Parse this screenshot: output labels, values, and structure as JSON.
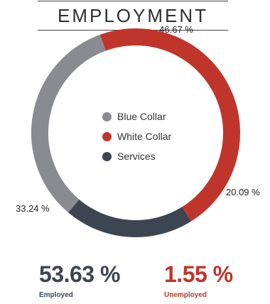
{
  "title": "EMPLOYMENT",
  "chart_data": {
    "type": "pie",
    "style": "donut",
    "categories": [
      "White Collar",
      "Services",
      "Blue Collar"
    ],
    "values": [
      46.67,
      20.09,
      33.24
    ],
    "value_labels": [
      "46.67 %",
      "20.09 %",
      "33.24 %"
    ],
    "colors": [
      "#c0352b",
      "#3d4552",
      "#8a8b91"
    ],
    "legend_placement": "center"
  },
  "legend": [
    {
      "label": "Blue Collar",
      "color": "#8a8b91"
    },
    {
      "label": "White Collar",
      "color": "#c0352b"
    },
    {
      "label": "Services",
      "color": "#3d4552"
    }
  ],
  "stats": {
    "employed": {
      "value": "53.63 %",
      "label": "Employed",
      "color": "#3d4552"
    },
    "unemployed": {
      "value": "1.55 %",
      "label": "Unemployed",
      "color": "#c0352b"
    }
  }
}
